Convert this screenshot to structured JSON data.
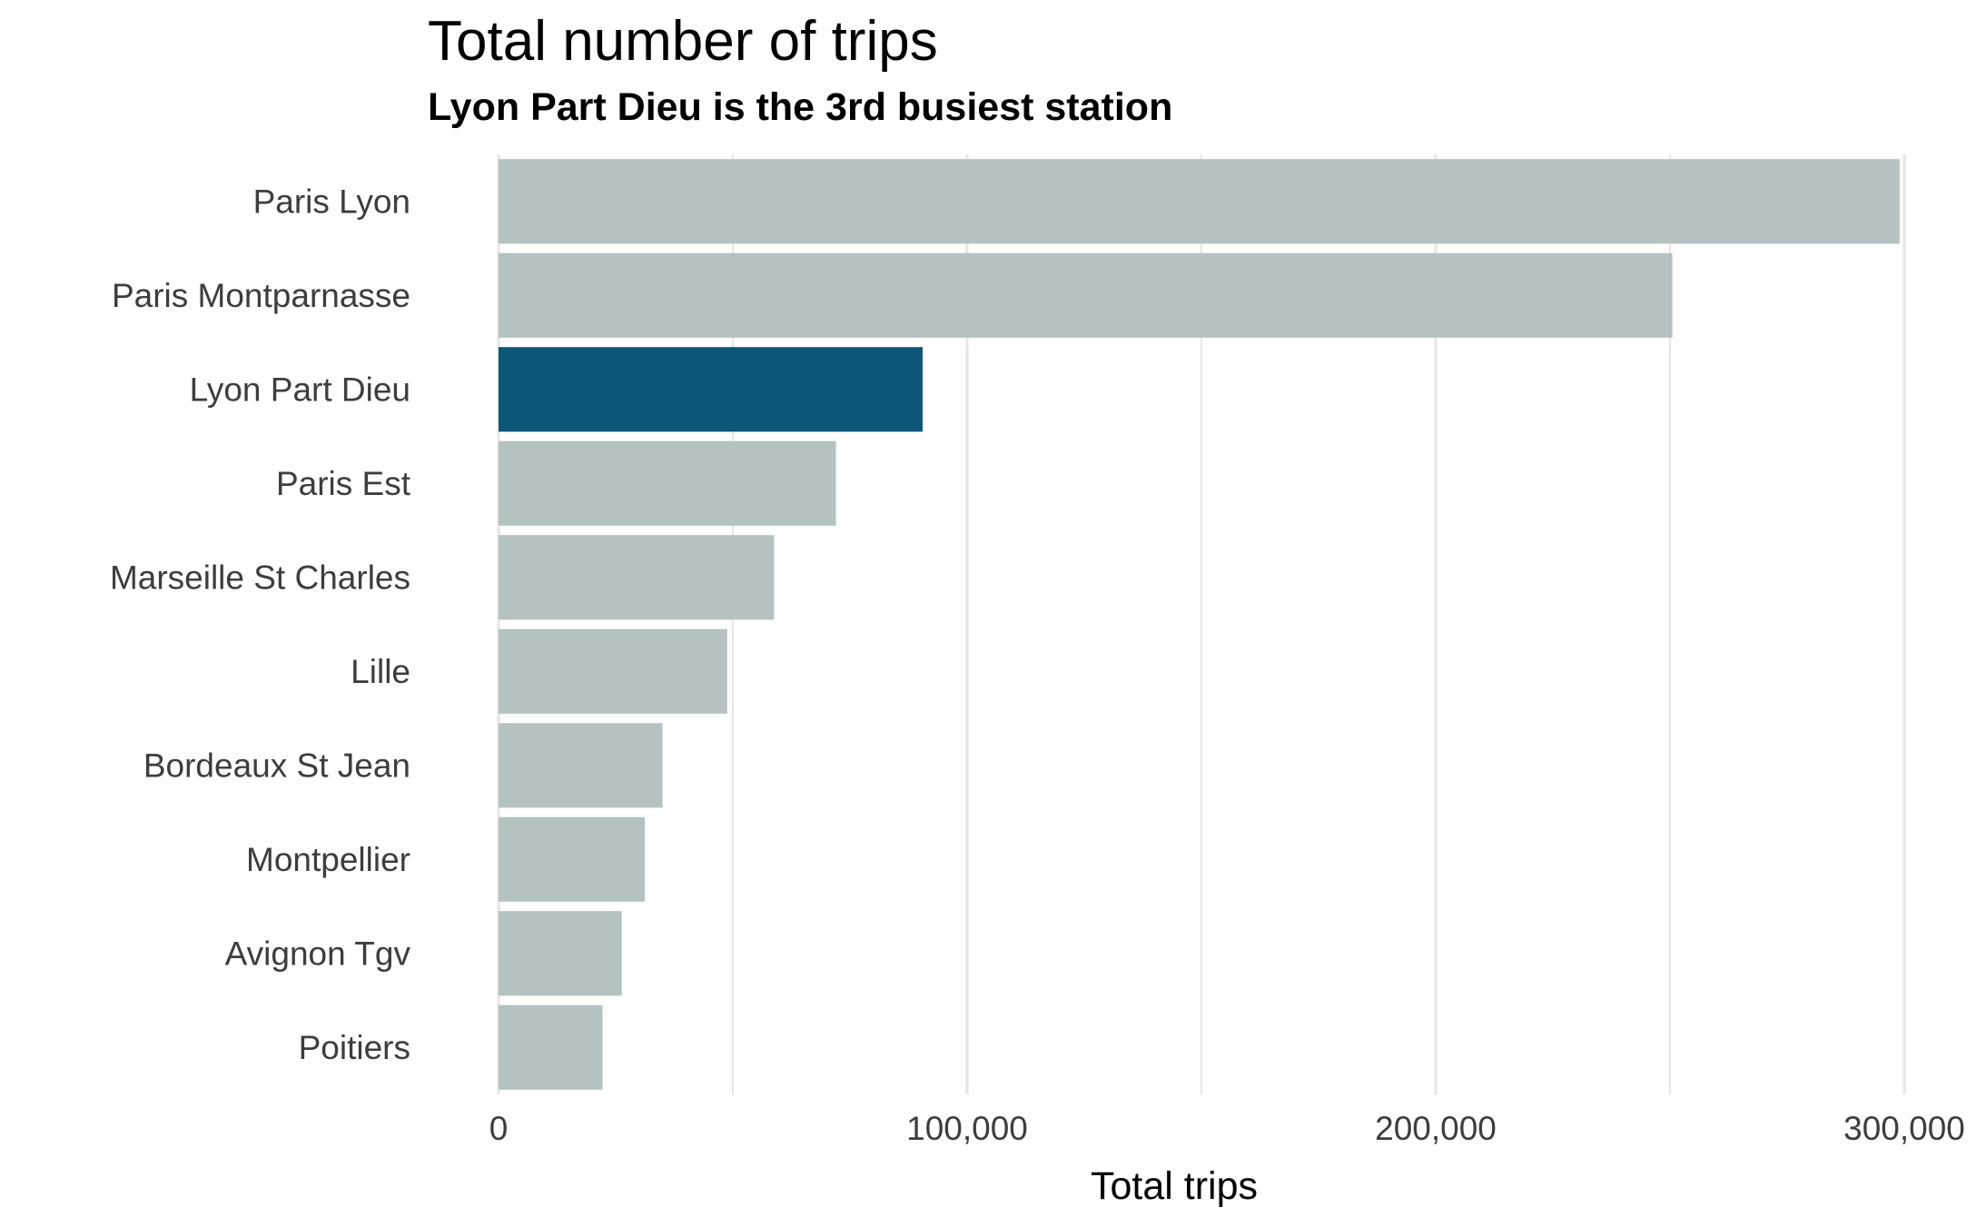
{
  "chart_data": {
    "type": "bar",
    "orientation": "horizontal",
    "title": "Total number of trips",
    "subtitle": "Lyon Part Dieu is the 3rd busiest station",
    "xlabel": "Total trips",
    "ylabel": "",
    "categories": [
      "Paris Lyon",
      "Paris Montparnasse",
      "Lyon Part Dieu",
      "Paris Est",
      "Marseille St Charles",
      "Lille",
      "Bordeaux St Jean",
      "Montpellier",
      "Avignon Tgv",
      "Poitiers"
    ],
    "values": [
      299000,
      250500,
      90500,
      72000,
      58800,
      48800,
      35000,
      31200,
      26300,
      22200
    ],
    "highlight_category": "Lyon Part Dieu",
    "xlim": [
      0,
      300000
    ],
    "x_ticks": [
      0,
      100000,
      200000,
      300000
    ],
    "x_tick_labels": [
      "0",
      "100,000",
      "200,000",
      "300,000"
    ],
    "grid": true,
    "legend": "none",
    "colors": {
      "default_bar": "#b4c3c2",
      "highlight_bar": "#0c5677",
      "grid": "#e6e6e6",
      "text": "#3d3d3d",
      "title": "#000000"
    }
  }
}
